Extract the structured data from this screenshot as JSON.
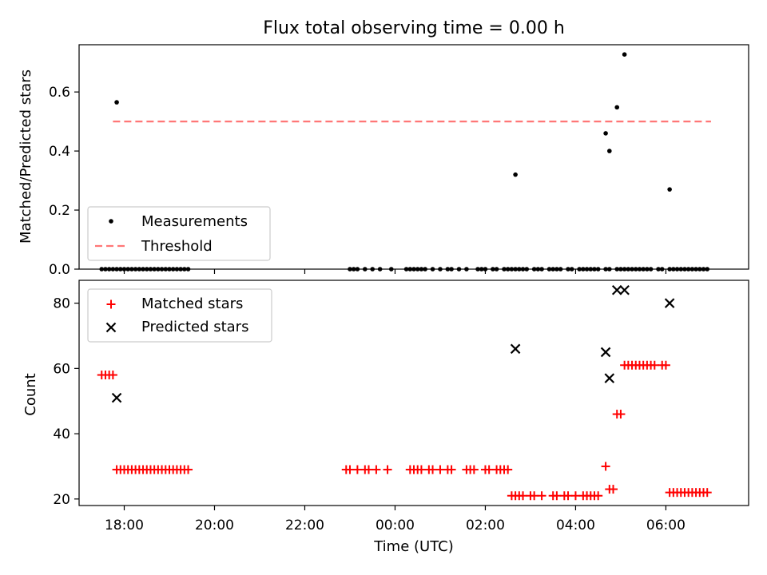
{
  "chart_data": [
    {
      "type": "scatter",
      "title": "Flux total observing time = 0.00 h",
      "xlabel": "",
      "ylabel": "Matched/Predicted stars",
      "xlim": [
        "17:00",
        "07:50"
      ],
      "ylim": [
        0,
        0.76
      ],
      "y_ticks": [
        "0.0",
        "0.2",
        "0.4",
        "0.6"
      ],
      "legend_position": "lower-left",
      "threshold": {
        "name": "Threshold",
        "color": "#ff7777",
        "y": 0.5,
        "x_start": "17:45",
        "x_end": "07:00"
      },
      "series": [
        {
          "name": "Measurements",
          "color": "#000000",
          "marker": "dot",
          "points": [
            [
              "17:50",
              0.565
            ],
            [
              "02:40",
              0.32
            ],
            [
              "04:40",
              0.46
            ],
            [
              "04:45",
              0.4
            ],
            [
              "04:55",
              0.548
            ],
            [
              "05:05",
              0.727
            ],
            [
              "06:05",
              0.27
            ],
            [
              "17:30",
              0
            ],
            [
              "17:35",
              0
            ],
            [
              "17:40",
              0
            ],
            [
              "17:45",
              0
            ],
            [
              "17:50",
              0
            ],
            [
              "17:55",
              0
            ],
            [
              "18:00",
              0
            ],
            [
              "18:05",
              0
            ],
            [
              "18:10",
              0
            ],
            [
              "18:15",
              0
            ],
            [
              "18:20",
              0
            ],
            [
              "18:25",
              0
            ],
            [
              "18:30",
              0
            ],
            [
              "18:35",
              0
            ],
            [
              "18:40",
              0
            ],
            [
              "18:45",
              0
            ],
            [
              "18:50",
              0
            ],
            [
              "18:55",
              0
            ],
            [
              "19:00",
              0
            ],
            [
              "19:05",
              0
            ],
            [
              "19:10",
              0
            ],
            [
              "19:15",
              0
            ],
            [
              "19:20",
              0
            ],
            [
              "19:25",
              0
            ],
            [
              "23:00",
              0
            ],
            [
              "23:05",
              0
            ],
            [
              "23:10",
              0
            ],
            [
              "23:20",
              0
            ],
            [
              "23:30",
              0
            ],
            [
              "23:40",
              0
            ],
            [
              "23:55",
              0
            ],
            [
              "00:15",
              0
            ],
            [
              "00:20",
              0
            ],
            [
              "00:25",
              0
            ],
            [
              "00:30",
              0
            ],
            [
              "00:35",
              0
            ],
            [
              "00:40",
              0
            ],
            [
              "00:50",
              0
            ],
            [
              "01:00",
              0
            ],
            [
              "01:10",
              0
            ],
            [
              "01:15",
              0
            ],
            [
              "01:25",
              0
            ],
            [
              "01:35",
              0
            ],
            [
              "01:50",
              0
            ],
            [
              "01:55",
              0
            ],
            [
              "02:00",
              0
            ],
            [
              "02:10",
              0
            ],
            [
              "02:15",
              0
            ],
            [
              "02:25",
              0
            ],
            [
              "02:30",
              0
            ],
            [
              "02:35",
              0
            ],
            [
              "02:40",
              0
            ],
            [
              "02:45",
              0
            ],
            [
              "02:50",
              0
            ],
            [
              "02:55",
              0
            ],
            [
              "03:05",
              0
            ],
            [
              "03:10",
              0
            ],
            [
              "03:15",
              0
            ],
            [
              "03:25",
              0
            ],
            [
              "03:30",
              0
            ],
            [
              "03:35",
              0
            ],
            [
              "03:40",
              0
            ],
            [
              "03:50",
              0
            ],
            [
              "03:55",
              0
            ],
            [
              "04:05",
              0
            ],
            [
              "04:10",
              0
            ],
            [
              "04:15",
              0
            ],
            [
              "04:20",
              0
            ],
            [
              "04:25",
              0
            ],
            [
              "04:30",
              0
            ],
            [
              "04:40",
              0
            ],
            [
              "04:45",
              0
            ],
            [
              "04:55",
              0
            ],
            [
              "05:00",
              0
            ],
            [
              "05:05",
              0
            ],
            [
              "05:10",
              0
            ],
            [
              "05:15",
              0
            ],
            [
              "05:20",
              0
            ],
            [
              "05:25",
              0
            ],
            [
              "05:30",
              0
            ],
            [
              "05:35",
              0
            ],
            [
              "05:40",
              0
            ],
            [
              "05:50",
              0
            ],
            [
              "05:55",
              0
            ],
            [
              "06:05",
              0
            ],
            [
              "06:10",
              0
            ],
            [
              "06:15",
              0
            ],
            [
              "06:20",
              0
            ],
            [
              "06:25",
              0
            ],
            [
              "06:30",
              0
            ],
            [
              "06:35",
              0
            ],
            [
              "06:40",
              0
            ],
            [
              "06:45",
              0
            ],
            [
              "06:50",
              0
            ],
            [
              "06:55",
              0
            ]
          ]
        }
      ]
    },
    {
      "type": "scatter",
      "title": "",
      "xlabel": "Time (UTC)",
      "ylabel": "Count",
      "xlim": [
        "17:00",
        "07:50"
      ],
      "ylim": [
        18,
        87
      ],
      "y_ticks": [
        "20",
        "40",
        "60",
        "80"
      ],
      "x_ticks": [
        "18:00",
        "20:00",
        "22:00",
        "00:00",
        "02:00",
        "04:00",
        "06:00"
      ],
      "legend_position": "upper-left",
      "series": [
        {
          "name": "Matched stars",
          "color": "#ff0000",
          "marker": "plus",
          "points": [
            [
              "17:30",
              58
            ],
            [
              "17:35",
              58
            ],
            [
              "17:40",
              58
            ],
            [
              "17:45",
              58
            ],
            [
              "17:50",
              29
            ],
            [
              "17:55",
              29
            ],
            [
              "18:00",
              29
            ],
            [
              "18:05",
              29
            ],
            [
              "18:10",
              29
            ],
            [
              "18:15",
              29
            ],
            [
              "18:20",
              29
            ],
            [
              "18:25",
              29
            ],
            [
              "18:30",
              29
            ],
            [
              "18:35",
              29
            ],
            [
              "18:40",
              29
            ],
            [
              "18:45",
              29
            ],
            [
              "18:50",
              29
            ],
            [
              "18:55",
              29
            ],
            [
              "19:00",
              29
            ],
            [
              "19:05",
              29
            ],
            [
              "19:10",
              29
            ],
            [
              "19:15",
              29
            ],
            [
              "19:20",
              29
            ],
            [
              "19:25",
              29
            ],
            [
              "22:55",
              29
            ],
            [
              "23:00",
              29
            ],
            [
              "23:10",
              29
            ],
            [
              "23:20",
              29
            ],
            [
              "23:25",
              29
            ],
            [
              "23:35",
              29
            ],
            [
              "23:50",
              29
            ],
            [
              "00:20",
              29
            ],
            [
              "00:25",
              29
            ],
            [
              "00:30",
              29
            ],
            [
              "00:35",
              29
            ],
            [
              "00:45",
              29
            ],
            [
              "00:50",
              29
            ],
            [
              "01:00",
              29
            ],
            [
              "01:10",
              29
            ],
            [
              "01:15",
              29
            ],
            [
              "01:35",
              29
            ],
            [
              "01:40",
              29
            ],
            [
              "01:45",
              29
            ],
            [
              "02:00",
              29
            ],
            [
              "02:05",
              29
            ],
            [
              "02:15",
              29
            ],
            [
              "02:20",
              29
            ],
            [
              "02:25",
              29
            ],
            [
              "02:30",
              29
            ],
            [
              "02:35",
              21
            ],
            [
              "02:40",
              21
            ],
            [
              "02:45",
              21
            ],
            [
              "02:50",
              21
            ],
            [
              "03:00",
              21
            ],
            [
              "03:05",
              21
            ],
            [
              "03:15",
              21
            ],
            [
              "03:30",
              21
            ],
            [
              "03:35",
              21
            ],
            [
              "03:45",
              21
            ],
            [
              "03:50",
              21
            ],
            [
              "04:00",
              21
            ],
            [
              "04:10",
              21
            ],
            [
              "04:15",
              21
            ],
            [
              "04:20",
              21
            ],
            [
              "04:25",
              21
            ],
            [
              "04:30",
              21
            ],
            [
              "04:40",
              30
            ],
            [
              "04:45",
              23
            ],
            [
              "04:50",
              23
            ],
            [
              "04:55",
              46
            ],
            [
              "05:00",
              46
            ],
            [
              "05:05",
              61
            ],
            [
              "05:10",
              61
            ],
            [
              "05:15",
              61
            ],
            [
              "05:20",
              61
            ],
            [
              "05:25",
              61
            ],
            [
              "05:30",
              61
            ],
            [
              "05:35",
              61
            ],
            [
              "05:40",
              61
            ],
            [
              "05:45",
              61
            ],
            [
              "05:55",
              61
            ],
            [
              "06:00",
              61
            ],
            [
              "06:05",
              22
            ],
            [
              "06:10",
              22
            ],
            [
              "06:15",
              22
            ],
            [
              "06:20",
              22
            ],
            [
              "06:25",
              22
            ],
            [
              "06:30",
              22
            ],
            [
              "06:35",
              22
            ],
            [
              "06:40",
              22
            ],
            [
              "06:45",
              22
            ],
            [
              "06:50",
              22
            ],
            [
              "06:55",
              22
            ]
          ]
        },
        {
          "name": "Predicted stars",
          "color": "#000000",
          "marker": "x",
          "points": [
            [
              "17:50",
              51
            ],
            [
              "02:40",
              66
            ],
            [
              "04:40",
              65
            ],
            [
              "04:45",
              57
            ],
            [
              "04:55",
              84
            ],
            [
              "05:05",
              84
            ],
            [
              "06:05",
              80
            ]
          ]
        }
      ]
    }
  ]
}
